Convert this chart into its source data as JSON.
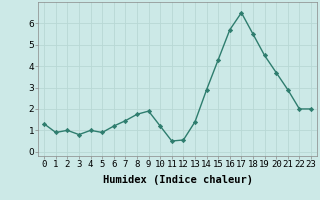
{
  "x": [
    0,
    1,
    2,
    3,
    4,
    5,
    6,
    7,
    8,
    9,
    10,
    11,
    12,
    13,
    14,
    15,
    16,
    17,
    18,
    19,
    20,
    21,
    22,
    23
  ],
  "y": [
    1.3,
    0.9,
    1.0,
    0.8,
    1.0,
    0.9,
    1.2,
    1.45,
    1.75,
    1.9,
    1.2,
    0.5,
    0.55,
    1.4,
    2.9,
    4.3,
    5.7,
    6.5,
    5.5,
    4.5,
    3.7,
    2.9,
    2.0,
    2.0
  ],
  "line_color": "#2e7d6e",
  "marker": "D",
  "marker_size": 2.2,
  "line_width": 1.0,
  "xlabel": "Humidex (Indice chaleur)",
  "xlim": [
    -0.5,
    23.5
  ],
  "ylim": [
    -0.2,
    7.0
  ],
  "yticks": [
    0,
    1,
    2,
    3,
    4,
    5,
    6
  ],
  "xtick_labels": [
    "0",
    "1",
    "2",
    "3",
    "4",
    "5",
    "6",
    "7",
    "8",
    "9",
    "10",
    "11",
    "12",
    "13",
    "14",
    "15",
    "16",
    "17",
    "18",
    "19",
    "20",
    "21",
    "22",
    "23"
  ],
  "bg_color": "#cce9e7",
  "grid_color": "#b8d8d5",
  "xlabel_fontsize": 7.5,
  "tick_fontsize": 6.5
}
